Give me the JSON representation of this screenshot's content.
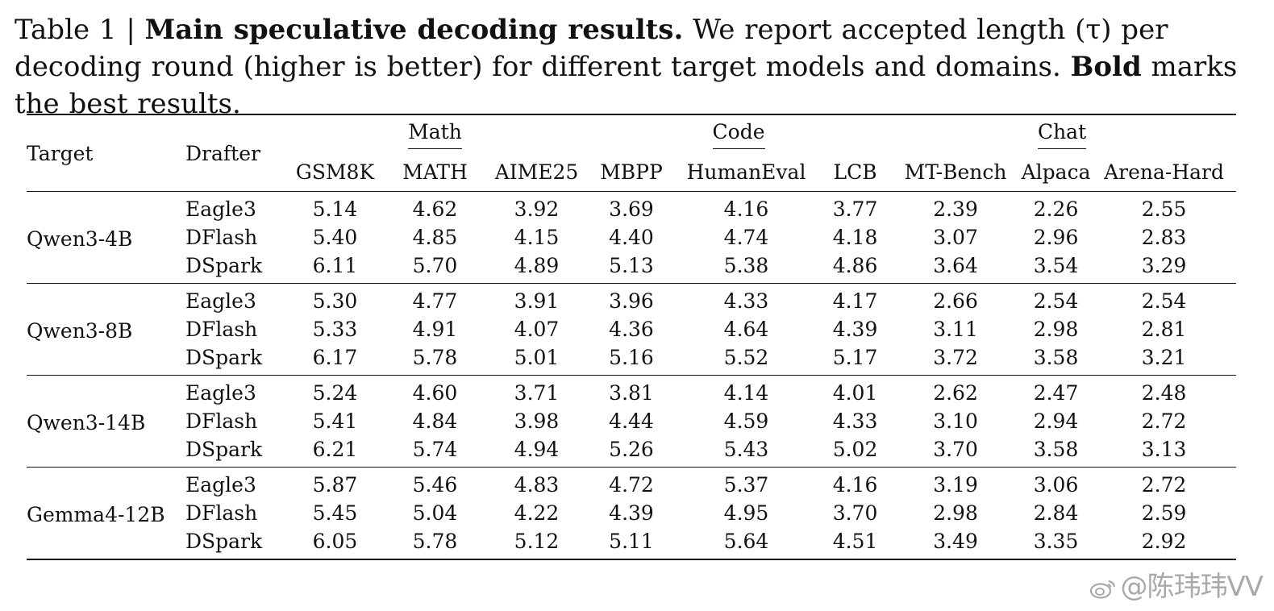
{
  "caption": {
    "prefix": "Table 1 | ",
    "title": "Main speculative decoding results.",
    "text1": " We report accepted length (τ) per decoding round (higher is better) for different target models and domains. ",
    "bold_word": "Bold",
    "text2": " marks the best results."
  },
  "header": {
    "target": "Target",
    "drafter": "Drafter",
    "groups": [
      "Math",
      "Code",
      "Chat"
    ],
    "metrics": [
      "GSM8K",
      "MATH",
      "AIME25",
      "MBPP",
      "HumanEval",
      "LCB",
      "MT-Bench",
      "Alpaca",
      "Arena-Hard"
    ]
  },
  "blocks": [
    {
      "target": "Qwen3-4B",
      "rows": [
        {
          "drafter": "Eagle3",
          "values": [
            "5.14",
            "4.62",
            "3.92",
            "3.69",
            "4.16",
            "3.77",
            "2.39",
            "2.26",
            "2.55"
          ]
        },
        {
          "drafter": "DFlash",
          "values": [
            "5.40",
            "4.85",
            "4.15",
            "4.40",
            "4.74",
            "4.18",
            "3.07",
            "2.96",
            "2.83"
          ]
        },
        {
          "drafter": "DSpark",
          "values": [
            "6.11",
            "5.70",
            "4.89",
            "5.13",
            "5.38",
            "4.86",
            "3.64",
            "3.54",
            "3.29"
          ]
        }
      ]
    },
    {
      "target": "Qwen3-8B",
      "rows": [
        {
          "drafter": "Eagle3",
          "values": [
            "5.30",
            "4.77",
            "3.91",
            "3.96",
            "4.33",
            "4.17",
            "2.66",
            "2.54",
            "2.54"
          ]
        },
        {
          "drafter": "DFlash",
          "values": [
            "5.33",
            "4.91",
            "4.07",
            "4.36",
            "4.64",
            "4.39",
            "3.11",
            "2.98",
            "2.81"
          ]
        },
        {
          "drafter": "DSpark",
          "values": [
            "6.17",
            "5.78",
            "5.01",
            "5.16",
            "5.52",
            "5.17",
            "3.72",
            "3.58",
            "3.21"
          ]
        }
      ]
    },
    {
      "target": "Qwen3-14B",
      "rows": [
        {
          "drafter": "Eagle3",
          "values": [
            "5.24",
            "4.60",
            "3.71",
            "3.81",
            "4.14",
            "4.01",
            "2.62",
            "2.47",
            "2.48"
          ]
        },
        {
          "drafter": "DFlash",
          "values": [
            "5.41",
            "4.84",
            "3.98",
            "4.44",
            "4.59",
            "4.33",
            "3.10",
            "2.94",
            "2.72"
          ]
        },
        {
          "drafter": "DSpark",
          "values": [
            "6.21",
            "5.74",
            "4.94",
            "5.26",
            "5.43",
            "5.02",
            "3.70",
            "3.58",
            "3.13"
          ]
        }
      ]
    },
    {
      "target": "Gemma4-12B",
      "rows": [
        {
          "drafter": "Eagle3",
          "values": [
            "5.87",
            "5.46",
            "4.83",
            "4.72",
            "5.37",
            "4.16",
            "3.19",
            "3.06",
            "2.72"
          ]
        },
        {
          "drafter": "DFlash",
          "values": [
            "5.45",
            "5.04",
            "4.22",
            "4.39",
            "4.95",
            "3.70",
            "2.98",
            "2.84",
            "2.59"
          ]
        },
        {
          "drafter": "DSpark",
          "values": [
            "6.05",
            "5.78",
            "5.12",
            "5.11",
            "5.64",
            "4.51",
            "3.49",
            "3.35",
            "2.92"
          ]
        }
      ]
    }
  ],
  "best_drafter": "DSpark",
  "watermark": "@陈玮玮VV"
}
